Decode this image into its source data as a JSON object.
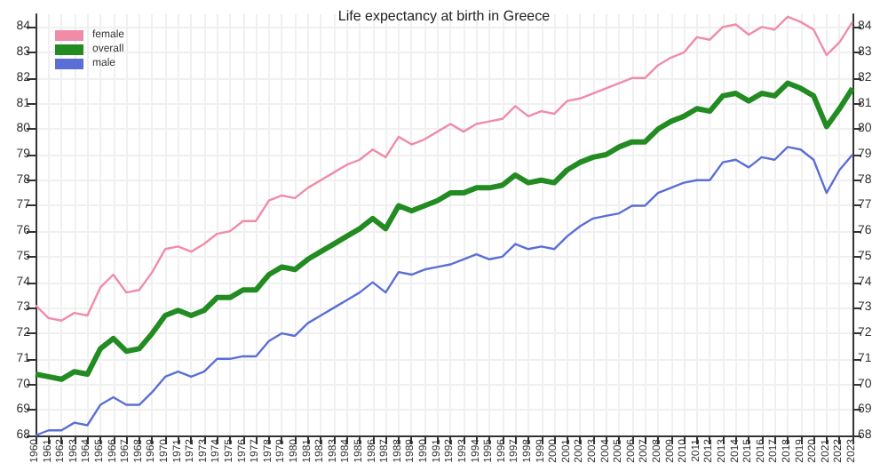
{
  "chart_data": {
    "type": "line",
    "title": "Life expectancy at birth in Greece",
    "categories": [
      "1960",
      "1961",
      "1962",
      "1963",
      "1964",
      "1965",
      "1966",
      "1967",
      "1968",
      "1969",
      "1970",
      "1971",
      "1972",
      "1973",
      "1974",
      "1975",
      "1976",
      "1977",
      "1978",
      "1979",
      "1980",
      "1981",
      "1982",
      "1983",
      "1984",
      "1985",
      "1986",
      "1987",
      "1988",
      "1989",
      "1990",
      "1991",
      "1992",
      "1993",
      "1994",
      "1995",
      "1996",
      "1997",
      "1998",
      "1999",
      "2000",
      "2001",
      "2002",
      "2003",
      "2004",
      "2005",
      "2006",
      "2007",
      "2008",
      "2009",
      "2010",
      "2011",
      "2012",
      "2013",
      "2014",
      "2015",
      "2016",
      "2017",
      "2018",
      "2019",
      "2020",
      "2021",
      "2022",
      "2023"
    ],
    "series": [
      {
        "name": "female",
        "color": "#f08ca8",
        "values": [
          73.1,
          72.6,
          72.5,
          72.8,
          72.7,
          73.8,
          74.3,
          73.6,
          73.7,
          74.4,
          75.3,
          75.4,
          75.2,
          75.5,
          75.9,
          76.0,
          76.4,
          76.4,
          77.2,
          77.4,
          77.3,
          77.7,
          78.0,
          78.3,
          78.6,
          78.8,
          79.2,
          78.9,
          79.7,
          79.4,
          79.6,
          79.9,
          80.2,
          79.9,
          80.2,
          80.3,
          80.4,
          80.9,
          80.5,
          80.7,
          80.6,
          81.1,
          81.2,
          81.4,
          81.6,
          81.8,
          82.0,
          82.0,
          82.5,
          82.8,
          83.0,
          83.6,
          83.5,
          84.0,
          84.1,
          83.7,
          84.0,
          83.9,
          84.4,
          84.2,
          83.9,
          82.9,
          83.4,
          84.2
        ]
      },
      {
        "name": "overall",
        "color": "#228b22",
        "values": [
          70.4,
          70.3,
          70.2,
          70.5,
          70.4,
          71.4,
          71.8,
          71.3,
          71.4,
          72.0,
          72.7,
          72.9,
          72.7,
          72.9,
          73.4,
          73.4,
          73.7,
          73.7,
          74.3,
          74.6,
          74.5,
          74.9,
          75.2,
          75.5,
          75.8,
          76.1,
          76.5,
          76.1,
          77.0,
          76.8,
          77.0,
          77.2,
          77.5,
          77.5,
          77.7,
          77.7,
          77.8,
          78.2,
          77.9,
          78.0,
          77.9,
          78.4,
          78.7,
          78.9,
          79.0,
          79.3,
          79.5,
          79.5,
          80.0,
          80.3,
          80.5,
          80.8,
          80.7,
          81.3,
          81.4,
          81.1,
          81.4,
          81.3,
          81.8,
          81.6,
          81.3,
          80.1,
          80.8,
          81.6
        ]
      },
      {
        "name": "male",
        "color": "#5a6fd6",
        "values": [
          68.0,
          68.2,
          68.2,
          68.5,
          68.4,
          69.2,
          69.5,
          69.2,
          69.2,
          69.7,
          70.3,
          70.5,
          70.3,
          70.5,
          71.0,
          71.0,
          71.1,
          71.1,
          71.7,
          72.0,
          71.9,
          72.4,
          72.7,
          73.0,
          73.3,
          73.6,
          74.0,
          73.6,
          74.4,
          74.3,
          74.5,
          74.6,
          74.7,
          74.9,
          75.1,
          74.9,
          75.0,
          75.5,
          75.3,
          75.4,
          75.3,
          75.8,
          76.2,
          76.5,
          76.6,
          76.7,
          77.0,
          77.0,
          77.5,
          77.7,
          77.9,
          78.0,
          78.0,
          78.7,
          78.8,
          78.5,
          78.9,
          78.8,
          79.3,
          79.2,
          78.8,
          77.5,
          78.4,
          79.0
        ]
      }
    ],
    "ylim": [
      68,
      84.5
    ],
    "yticks": [
      68,
      69,
      70,
      71,
      72,
      73,
      74,
      75,
      76,
      77,
      78,
      79,
      80,
      81,
      82,
      83,
      84
    ],
    "y2lim": [
      68,
      84.5
    ],
    "y2ticks": [
      68,
      69,
      70,
      71,
      72,
      73,
      74,
      75,
      76,
      77,
      78,
      79,
      80,
      81,
      82,
      83,
      84
    ],
    "grid": true,
    "legend": "top left",
    "marker": "none",
    "line_style": "solid"
  }
}
